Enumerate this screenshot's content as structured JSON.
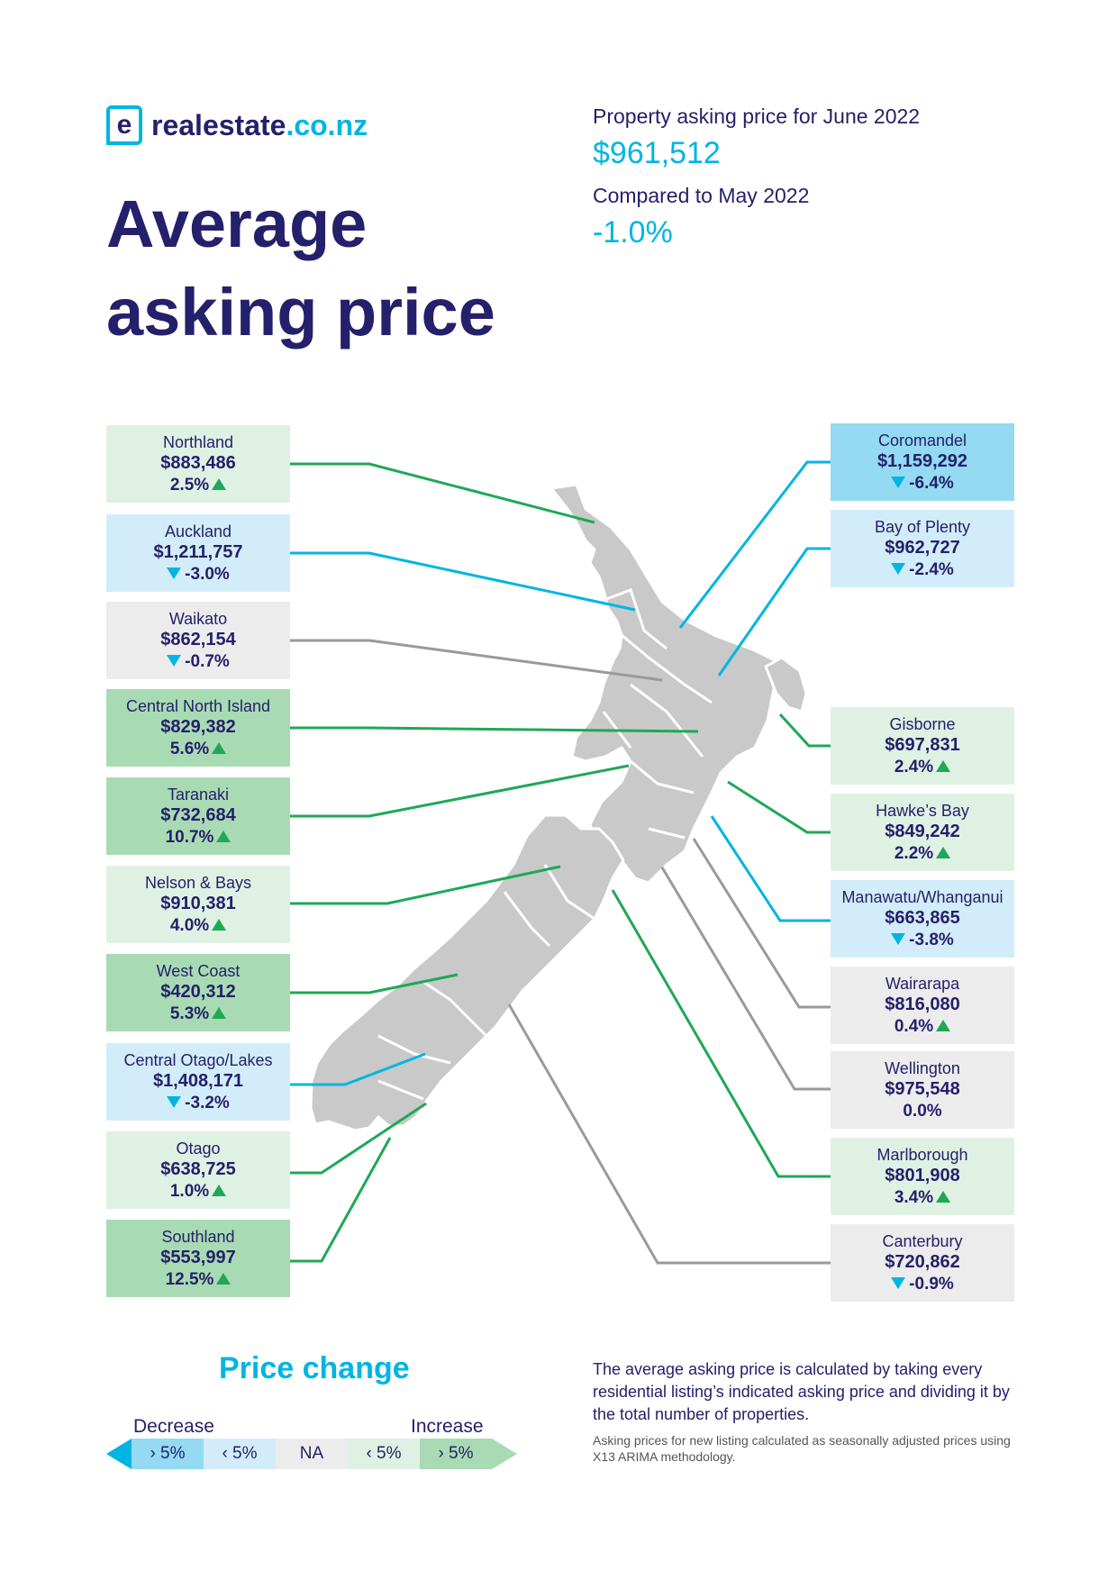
{
  "logo": {
    "mark": "e",
    "name": "realestate",
    "tld": ".co.nz"
  },
  "title": {
    "line1": "Average",
    "line2": "asking price"
  },
  "summary": {
    "label1": "Property asking price for June 2022",
    "value1": "$961,512",
    "label2": "Compared to May 2022",
    "value2": "-1.0%"
  },
  "regions": {
    "northland": {
      "name": "Northland",
      "price": "$883,486",
      "change": "2.5%",
      "dir": "up"
    },
    "auckland": {
      "name": "Auckland",
      "price": "$1,211,757",
      "change": "-3.0%",
      "dir": "down"
    },
    "waikato": {
      "name": "Waikato",
      "price": "$862,154",
      "change": "-0.7%",
      "dir": "down"
    },
    "central_north_island": {
      "name": "Central North Island",
      "price": "$829,382",
      "change": "5.6%",
      "dir": "up"
    },
    "taranaki": {
      "name": "Taranaki",
      "price": "$732,684",
      "change": "10.7%",
      "dir": "up"
    },
    "nelson_bays": {
      "name": "Nelson & Bays",
      "price": "$910,381",
      "change": "4.0%",
      "dir": "up"
    },
    "west_coast": {
      "name": "West Coast",
      "price": "$420,312",
      "change": "5.3%",
      "dir": "up"
    },
    "central_otago": {
      "name": "Central Otago/Lakes",
      "price": "$1,408,171",
      "change": "-3.2%",
      "dir": "down"
    },
    "otago": {
      "name": "Otago",
      "price": "$638,725",
      "change": "1.0%",
      "dir": "up"
    },
    "southland": {
      "name": "Southland",
      "price": "$553,997",
      "change": "12.5%",
      "dir": "up"
    },
    "coromandel": {
      "name": "Coromandel",
      "price": "$1,159,292",
      "change": "-6.4%",
      "dir": "down"
    },
    "bay_of_plenty": {
      "name": "Bay of Plenty",
      "price": "$962,727",
      "change": "-2.4%",
      "dir": "down"
    },
    "gisborne": {
      "name": "Gisborne",
      "price": "$697,831",
      "change": "2.4%",
      "dir": "up"
    },
    "hawkes_bay": {
      "name": "Hawke’s Bay",
      "price": "$849,242",
      "change": "2.2%",
      "dir": "up"
    },
    "manawatu": {
      "name": "Manawatu/Whanganui",
      "price": "$663,865",
      "change": "-3.8%",
      "dir": "down"
    },
    "wairarapa": {
      "name": "Wairarapa",
      "price": "$816,080",
      "change": "0.4%",
      "dir": "up"
    },
    "wellington": {
      "name": "Wellington",
      "price": "$975,548",
      "change": "0.0%",
      "dir": "none"
    },
    "marlborough": {
      "name": "Marlborough",
      "price": "$801,908",
      "change": "3.4%",
      "dir": "up"
    },
    "canterbury": {
      "name": "Canterbury",
      "price": "$720,862",
      "change": "-0.9%",
      "dir": "down"
    }
  },
  "legend": {
    "title": "Price change",
    "decrease": "Decrease",
    "increase": "Increase",
    "segments": [
      "› 5%",
      "‹ 5%",
      "NA",
      "‹ 5%",
      "› 5%"
    ]
  },
  "notes": {
    "main": "The average asking price is calculated by taking every residential listing’s indicated asking price and dividing it by the total number of properties.",
    "small": "Asking prices for new listing calculated as seasonally adjusted prices using X13 ARIMA methodology."
  },
  "colors": {
    "navy": "#25206b",
    "cyan": "#00b5e2",
    "green": "#1fa855",
    "grey": "#9a9a9a",
    "map": "#c9c9c9"
  }
}
